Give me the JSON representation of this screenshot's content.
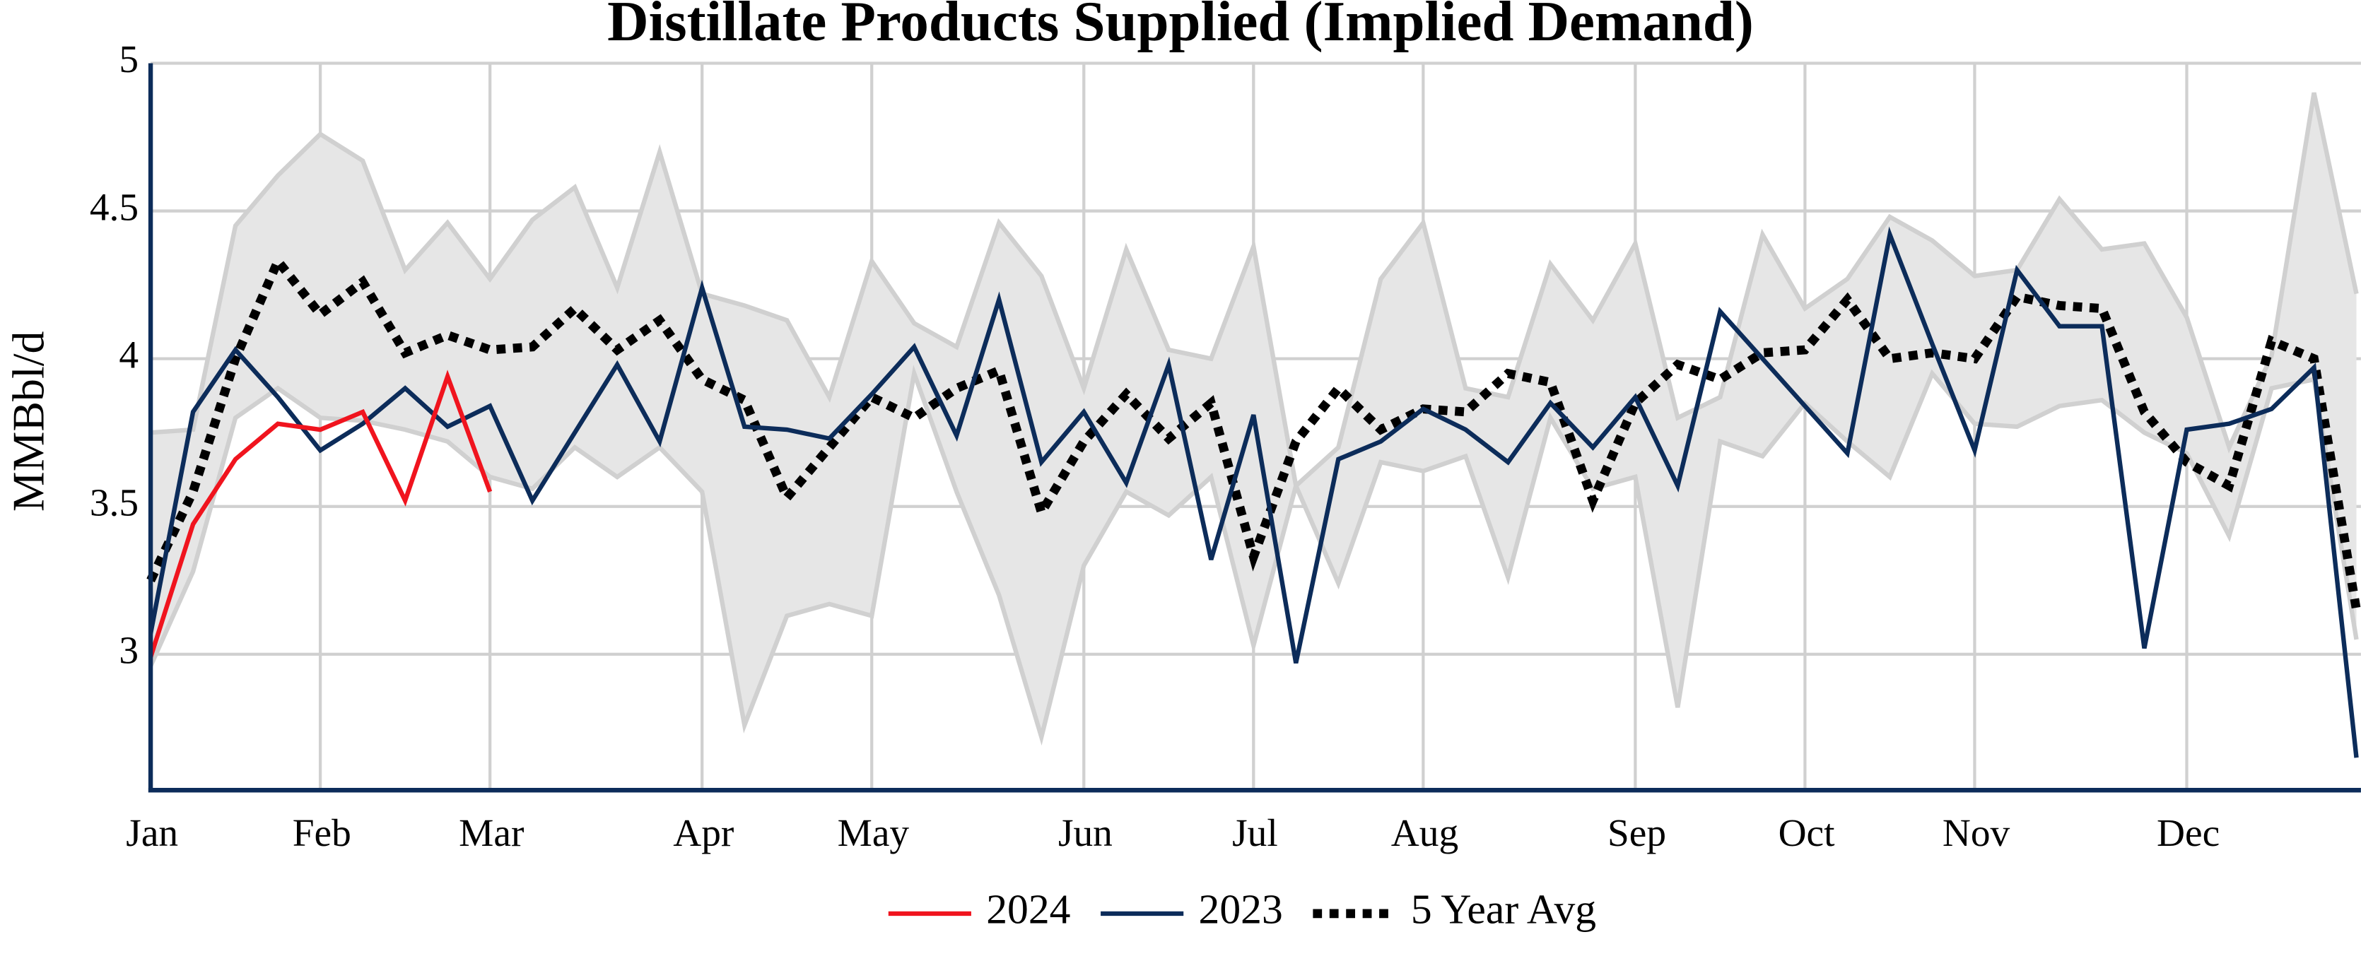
{
  "chart_data": {
    "type": "line",
    "title": "Distillate Products Supplied (Implied Demand)",
    "y_label": "MMBbl/d",
    "categories": [
      "Jan",
      null,
      null,
      null,
      "Feb",
      null,
      null,
      null,
      "Mar",
      null,
      null,
      null,
      null,
      "Apr",
      null,
      null,
      null,
      "May",
      null,
      null,
      null,
      null,
      "Jun",
      null,
      null,
      null,
      "Jul",
      null,
      null,
      null,
      "Aug",
      null,
      null,
      null,
      null,
      "Sep",
      null,
      null,
      null,
      "Oct",
      null,
      null,
      null,
      "Nov",
      null,
      null,
      null,
      null,
      "Dec",
      null,
      null,
      null,
      null
    ],
    "ylim": [
      2.54,
      5
    ],
    "yticks": [
      3,
      3.5,
      4,
      4.5,
      5
    ],
    "grid": true,
    "range": {
      "color": "#e6e6e6",
      "edge_color": "#d0d0d0",
      "high": [
        3.75,
        3.76,
        4.45,
        4.62,
        4.76,
        4.67,
        4.3,
        4.46,
        4.27,
        4.47,
        4.58,
        4.24,
        4.7,
        4.22,
        4.18,
        4.13,
        3.87,
        4.33,
        4.12,
        4.04,
        4.46,
        4.28,
        3.9,
        4.37,
        4.03,
        4.0,
        4.38,
        3.57,
        3.7,
        4.27,
        4.46,
        3.9,
        3.87,
        4.32,
        4.13,
        4.39,
        3.8,
        3.87,
        4.42,
        4.17,
        4.27,
        4.48,
        4.4,
        4.28,
        4.3,
        4.54,
        4.37,
        4.39,
        4.14,
        3.7,
        4.01,
        4.9,
        4.22
      ],
      "low": [
        2.96,
        3.28,
        3.8,
        3.9,
        3.8,
        3.79,
        3.76,
        3.72,
        3.6,
        3.56,
        3.7,
        3.6,
        3.7,
        3.55,
        2.76,
        3.13,
        3.17,
        3.13,
        3.95,
        3.55,
        3.2,
        2.72,
        3.3,
        3.55,
        3.47,
        3.6,
        3.03,
        3.57,
        3.24,
        3.65,
        3.62,
        3.67,
        3.26,
        3.8,
        3.56,
        3.6,
        2.82,
        3.72,
        3.67,
        3.85,
        3.72,
        3.6,
        3.95,
        3.78,
        3.77,
        3.84,
        3.86,
        3.75,
        3.68,
        3.4,
        3.9,
        3.93,
        3.05
      ]
    },
    "series": [
      {
        "name": "2024",
        "color": "#f0141e",
        "dash": "solid",
        "values": [
          2.99,
          3.44,
          3.66,
          3.78,
          3.76,
          3.82,
          3.52,
          3.94,
          3.55,
          null,
          null,
          null,
          null,
          null,
          null,
          null,
          null,
          null,
          null,
          null,
          null,
          null,
          null,
          null,
          null,
          null,
          null,
          null,
          null,
          null,
          null,
          null,
          null,
          null,
          null,
          null,
          null,
          null,
          null,
          null,
          null,
          null,
          null,
          null,
          null,
          null,
          null,
          null,
          null,
          null,
          null,
          null,
          null
        ]
      },
      {
        "name": "2023",
        "color": "#0c2c5a",
        "dash": "solid",
        "values": [
          3.07,
          3.82,
          4.03,
          3.87,
          3.69,
          3.78,
          3.9,
          3.77,
          3.84,
          3.52,
          3.75,
          3.98,
          3.72,
          4.24,
          3.77,
          3.76,
          3.73,
          3.88,
          4.04,
          3.74,
          4.2,
          3.65,
          3.82,
          3.58,
          3.98,
          3.32,
          3.81,
          2.97,
          3.66,
          3.72,
          3.83,
          3.76,
          3.65,
          3.85,
          3.7,
          3.87,
          3.57,
          4.16,
          4.0,
          3.84,
          3.68,
          4.42,
          4.05,
          3.69,
          4.3,
          4.11,
          4.11,
          3.02,
          3.76,
          3.78,
          3.83,
          3.97,
          2.65
        ]
      },
      {
        "name": "5 Year Avg",
        "color": "#000000",
        "dash": "dotted",
        "values": [
          3.25,
          3.55,
          4.0,
          4.33,
          4.15,
          4.26,
          4.02,
          4.08,
          4.03,
          4.04,
          4.17,
          4.03,
          4.13,
          3.93,
          3.86,
          3.53,
          3.7,
          3.87,
          3.8,
          3.9,
          3.96,
          3.48,
          3.72,
          3.88,
          3.73,
          3.85,
          3.33,
          3.72,
          3.9,
          3.76,
          3.83,
          3.82,
          3.95,
          3.92,
          3.52,
          3.85,
          3.98,
          3.93,
          4.02,
          4.03,
          4.2,
          4.0,
          4.02,
          4.0,
          4.21,
          4.18,
          4.17,
          3.82,
          3.65,
          3.57,
          4.06,
          4.0,
          3.15
        ]
      }
    ]
  }
}
